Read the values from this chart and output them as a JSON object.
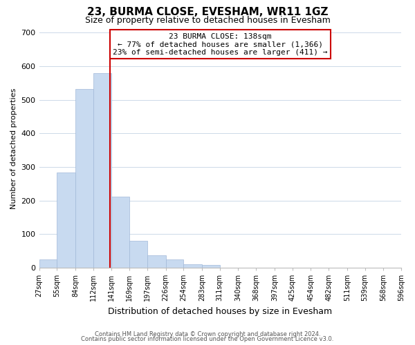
{
  "title": "23, BURMA CLOSE, EVESHAM, WR11 1GZ",
  "subtitle": "Size of property relative to detached houses in Evesham",
  "xlabel": "Distribution of detached houses by size in Evesham",
  "ylabel": "Number of detached properties",
  "bin_edges": [
    27,
    55,
    84,
    112,
    141,
    169,
    197,
    226,
    254,
    283,
    311,
    340,
    368,
    397,
    425,
    454,
    482,
    511,
    539,
    568,
    596
  ],
  "bar_heights": [
    25,
    283,
    533,
    580,
    211,
    80,
    37,
    25,
    10,
    8,
    0,
    0,
    0,
    0,
    0,
    0,
    0,
    0,
    0,
    0
  ],
  "bar_color": "#c8daf0",
  "bar_edge_color": "#a0b8d8",
  "property_line_x": 138,
  "property_line_color": "#cc0000",
  "annotation_title": "23 BURMA CLOSE: 138sqm",
  "annotation_line1": "← 77% of detached houses are smaller (1,366)",
  "annotation_line2": "23% of semi-detached houses are larger (411) →",
  "ylim": [
    0,
    710
  ],
  "yticks": [
    0,
    100,
    200,
    300,
    400,
    500,
    600,
    700
  ],
  "tick_labels": [
    "27sqm",
    "55sqm",
    "84sqm",
    "112sqm",
    "141sqm",
    "169sqm",
    "197sqm",
    "226sqm",
    "254sqm",
    "283sqm",
    "311sqm",
    "340sqm",
    "368sqm",
    "397sqm",
    "425sqm",
    "454sqm",
    "482sqm",
    "511sqm",
    "539sqm",
    "568sqm",
    "596sqm"
  ],
  "footnote1": "Contains HM Land Registry data © Crown copyright and database right 2024.",
  "footnote2": "Contains public sector information licensed under the Open Government Licence v3.0.",
  "background_color": "#ffffff",
  "grid_color": "#ccd9e8"
}
